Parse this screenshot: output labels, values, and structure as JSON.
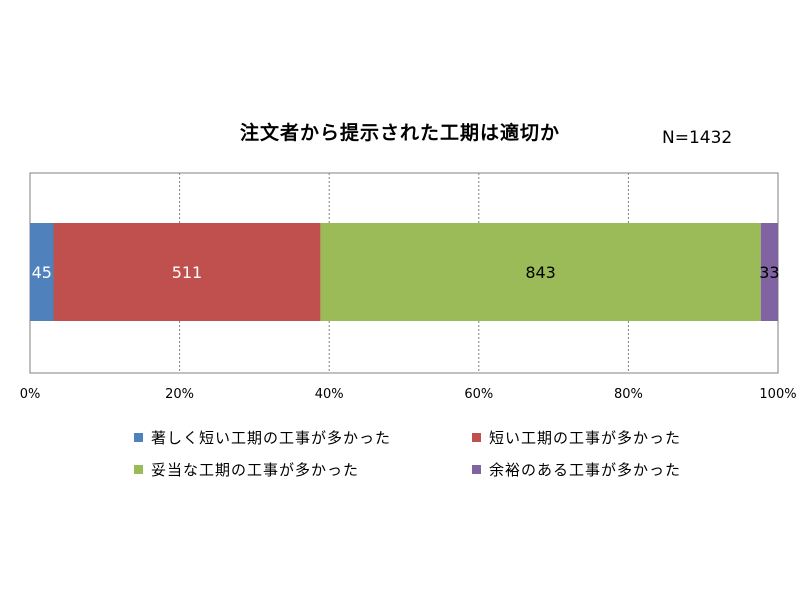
{
  "chart_data": {
    "type": "bar",
    "orientation": "horizontal",
    "stacked": "percent",
    "title": "注文者から提示された工期は適切か",
    "annotation": "N=1432",
    "series": [
      {
        "name": "著しく短い工期の工事が多かった",
        "values": [
          45
        ],
        "color": "#4F81BD",
        "label": "45"
      },
      {
        "name": "短い工期の工事が多かった",
        "values": [
          511
        ],
        "color": "#C0504D",
        "label": "511"
      },
      {
        "name": "妥当な工期の工事が多かった",
        "values": [
          843
        ],
        "color": "#9BBB59",
        "label": "843"
      },
      {
        "name": "余裕のある工事が多かった",
        "values": [
          33
        ],
        "color": "#8064A2",
        "label": "33"
      }
    ],
    "xlim": [
      0,
      100
    ],
    "x_ticks": [
      "0%",
      "20%",
      "40%",
      "60%",
      "80%",
      "100%"
    ],
    "grid": "vertical-dashed",
    "legend_position": "bottom"
  }
}
